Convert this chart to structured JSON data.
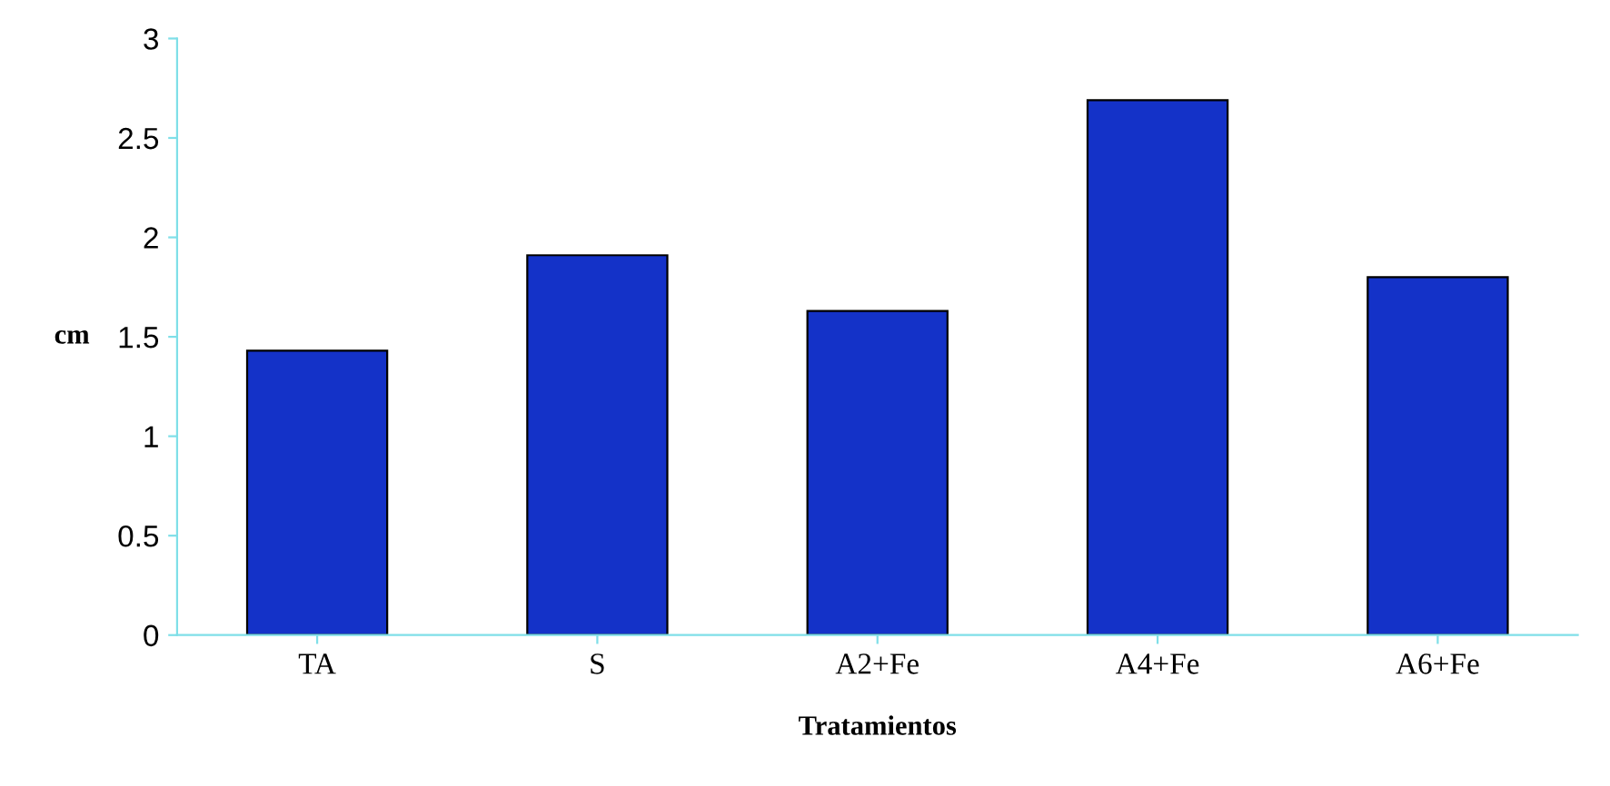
{
  "chart_data": {
    "type": "bar",
    "xlabel": "Tratamientos",
    "ylabel": "cm",
    "categories": [
      "TA",
      "S",
      "A2+Fe",
      "A4+Fe",
      "A6+Fe"
    ],
    "values": [
      1.43,
      1.91,
      1.63,
      2.69,
      1.8
    ],
    "color": "#1432c8",
    "ylim": [
      0,
      3
    ],
    "yticks": [
      0,
      0.5,
      1,
      1.5,
      2,
      2.5,
      3
    ],
    "grid": false
  }
}
